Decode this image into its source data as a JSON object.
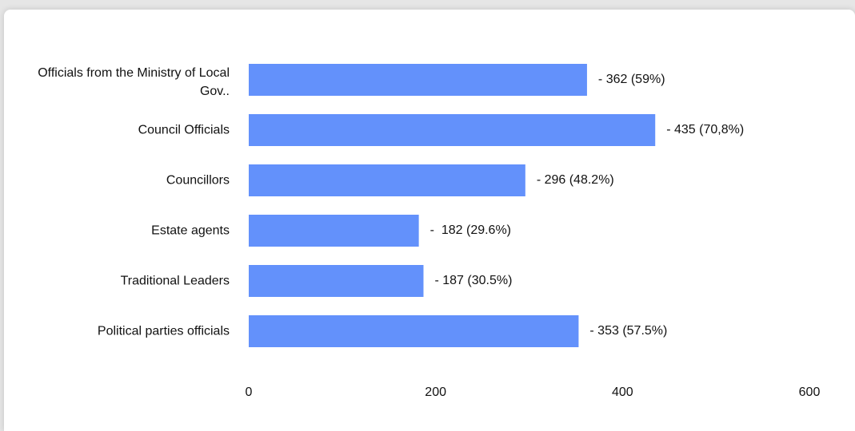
{
  "chart_data": {
    "type": "bar",
    "orientation": "horizontal",
    "categories": [
      "Officials from the Ministry of Local Gov..",
      "Council Officials",
      "Councillors",
      "Estate agents",
      "Traditional Leaders",
      "Political parties officials"
    ],
    "values": [
      362,
      435,
      296,
      182,
      187,
      353
    ],
    "value_labels": [
      "- 362 (59%)",
      "- 435 (70,8%)",
      "- 296 (48.2%)",
      "-  182 (29.6%)",
      "- 187 (30.5%)",
      "- 353 (57.5%)"
    ],
    "color": "#6391fb",
    "xlim": [
      0,
      600
    ],
    "xticks": [
      0,
      200,
      400,
      600
    ],
    "grid": false
  }
}
